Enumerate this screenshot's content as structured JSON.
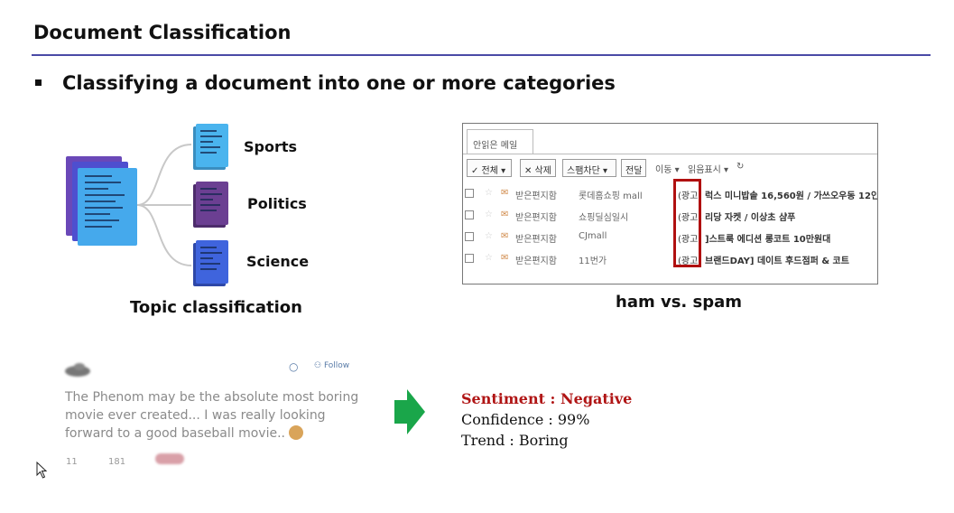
{
  "slide": {
    "title": "Document Classification",
    "bullet": "Classifying a document into one or more categories"
  },
  "topic": {
    "labels": [
      "Sports",
      "Politics",
      "Science"
    ],
    "caption": "Topic classification",
    "colors": {
      "sports": "#4ab4ee",
      "politics": "#6b3f92",
      "science": "#3f64dd",
      "stack": "#4457d9"
    }
  },
  "mail": {
    "tab": "안읽은 메일",
    "toolbar": {
      "all": "✓ 전체",
      "delete": "✕ 삭제",
      "block": "스팸차단",
      "forward": "전달",
      "move": "이동 ▾",
      "read_mark": "읽음표시 ▾",
      "refresh": "↻"
    },
    "rows": [
      {
        "folder": "받은편지함",
        "sender": "롯데홈쇼핑 mall",
        "tag": "(광고)",
        "subject": "럭스 미니밥솥 16,560원 / 가쓰오우동 12인"
      },
      {
        "folder": "받은편지함",
        "sender": "쇼핑딜심일시",
        "tag": "(광고)",
        "subject": "리당 자켓 / 이상초 샴푸"
      },
      {
        "folder": "받은편지함",
        "sender": "CJmall",
        "tag": "(광고)",
        "subject": "]스트룩 에디션 롱코트 10만원대"
      },
      {
        "folder": "받은편지함",
        "sender": "11번가",
        "tag": "(광고)",
        "subject": "브랜드DAY] 데이트 후드점퍼 & 코트"
      }
    ],
    "caption": "ham vs. spam",
    "highlight_color": "#b01010"
  },
  "tweet": {
    "follow": "Follow",
    "text": "The Phenom may be the absolute most boring movie ever created... I was really looking forward to a good baseball movie..",
    "retweets": "11",
    "likes": "181"
  },
  "sentiment": {
    "title": "Sentiment : Negative",
    "confidence": "Confidence : 99%",
    "trend": "Trend : Boring",
    "title_color": "#b01515",
    "arrow_color": "#1aa64a"
  }
}
